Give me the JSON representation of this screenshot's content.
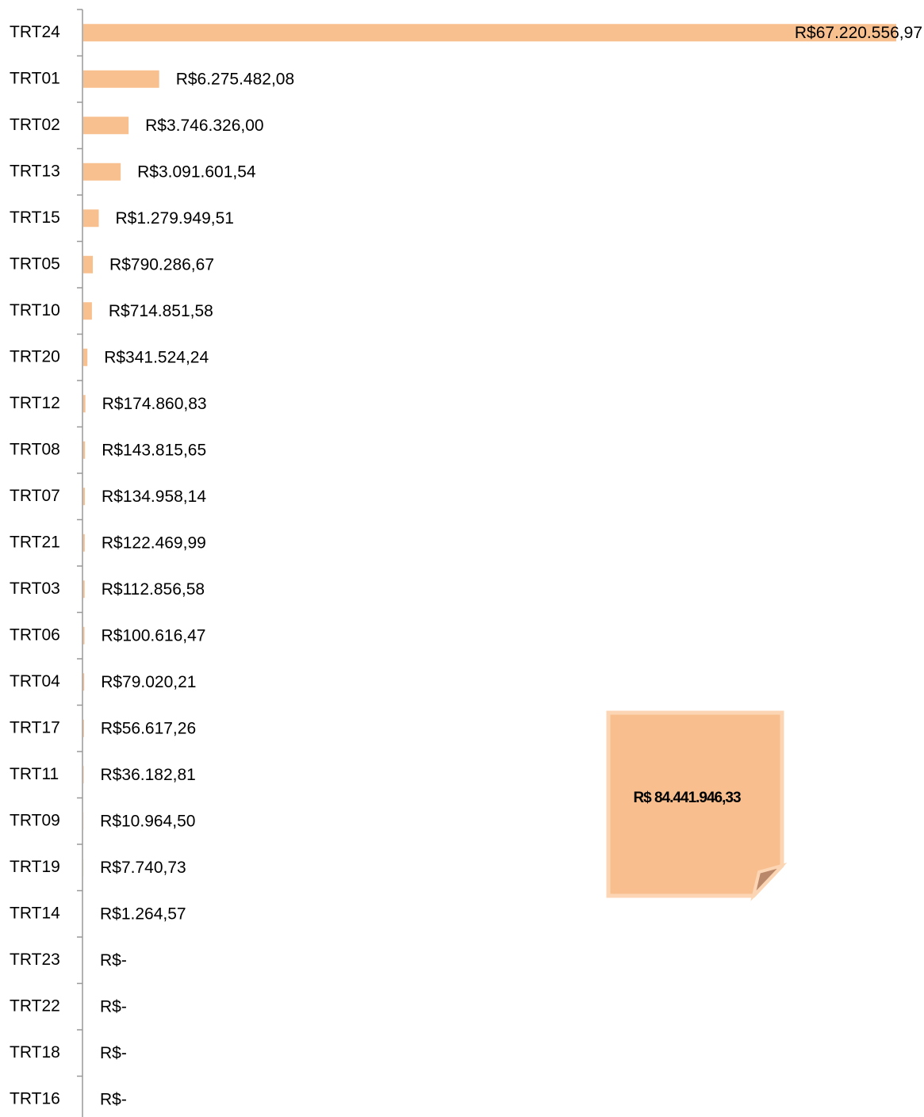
{
  "chart_data": {
    "type": "bar",
    "orientation": "horizontal",
    "color": "#f9c08f",
    "categories": [
      "TRT24",
      "TRT01",
      "TRT02",
      "TRT13",
      "TRT15",
      "TRT05",
      "TRT10",
      "TRT20",
      "TRT12",
      "TRT08",
      "TRT07",
      "TRT21",
      "TRT03",
      "TRT06",
      "TRT04",
      "TRT17",
      "TRT11",
      "TRT09",
      "TRT19",
      "TRT14",
      "TRT23",
      "TRT22",
      "TRT18",
      "TRT16"
    ],
    "values": [
      67220556.97,
      6275482.08,
      3746326.0,
      3091601.54,
      1279949.51,
      790286.67,
      714851.58,
      341524.24,
      174860.83,
      143815.65,
      134958.14,
      122469.99,
      112856.58,
      100616.47,
      79020.21,
      56617.26,
      36182.81,
      10964.5,
      7740.73,
      1264.57,
      0,
      0,
      0,
      0
    ],
    "value_labels": [
      "R$67.220.556,97",
      "R$6.275.482,08",
      "R$3.746.326,00",
      "R$3.091.601,54",
      "R$1.279.949,51",
      "R$790.286,67",
      "R$714.851,58",
      "R$341.524,24",
      "R$174.860,83",
      "R$143.815,65",
      "R$134.958,14",
      "R$122.469,99",
      "R$112.856,58",
      "R$100.616,47",
      "R$79.020,21",
      "R$56.617,26",
      "R$36.182,81",
      "R$10.964,50",
      "R$7.740,73",
      "R$1.264,57",
      "R$-",
      "R$-",
      "R$-",
      "R$-"
    ],
    "annotations": [
      "R$ 84.441.946,33"
    ]
  }
}
